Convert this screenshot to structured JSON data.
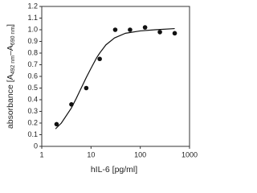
{
  "chart_data": {
    "type": "scatter",
    "xlabel": "hIL-6 [pg/ml]",
    "ylabel": [
      "absorbance [A",
      "492 nm",
      "–A",
      "690 nm",
      "]"
    ],
    "xscale": "log",
    "xlim": [
      1,
      1000
    ],
    "xticks": [
      1,
      10,
      100,
      1000
    ],
    "ylim": [
      0,
      1.2
    ],
    "yticks": [
      0,
      0.1,
      0.2,
      0.3,
      0.4,
      0.5,
      0.6,
      0.7,
      0.8,
      0.9,
      {
        "value": 1,
        "label": "1.0"
      },
      1.1,
      1.2
    ],
    "series": [
      {
        "type": "scatter",
        "color": "#111111",
        "x": [
          2,
          4,
          8,
          15,
          31,
          62,
          125,
          250,
          500
        ],
        "values": [
          0.19,
          0.36,
          0.5,
          0.75,
          1.0,
          1.0,
          1.02,
          0.98,
          0.97
        ]
      },
      {
        "type": "line",
        "color": "#111111",
        "x": [
          1.9,
          2.5,
          3,
          4,
          5,
          6,
          8,
          10,
          13,
          15,
          20,
          30,
          50,
          100,
          200,
          500
        ],
        "values": [
          0.15,
          0.2,
          0.25,
          0.33,
          0.41,
          0.48,
          0.59,
          0.67,
          0.76,
          0.8,
          0.87,
          0.93,
          0.97,
          0.99,
          1.0,
          1.01
        ]
      }
    ]
  }
}
